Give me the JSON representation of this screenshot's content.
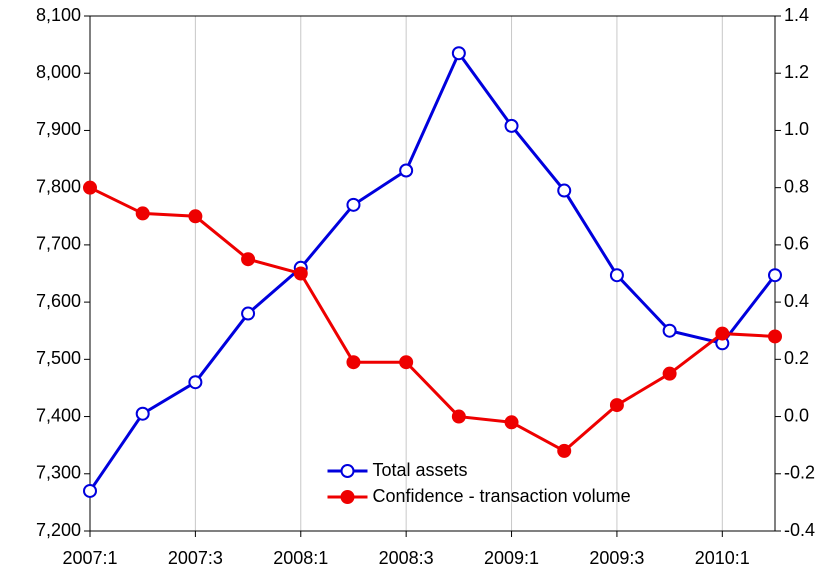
{
  "chart_data": {
    "type": "line",
    "categories": [
      "2007:1",
      null,
      "2007:3",
      null,
      "2008:1",
      null,
      "2008:3",
      null,
      "2009:1",
      null,
      "2009:3",
      null,
      "2010:1",
      null
    ],
    "series": [
      {
        "name": "Total assets",
        "color": "#0000dd",
        "marker": "open",
        "axis": "y",
        "values": [
          7270,
          7405,
          7460,
          7580,
          7660,
          7770,
          7830,
          8035,
          7908,
          7795,
          7647,
          7550,
          7528,
          7647
        ]
      },
      {
        "name": "Confidence - transaction volume",
        "color": "#ee0000",
        "marker": "filled",
        "axis": "y2",
        "values": [
          0.8,
          0.71,
          0.7,
          0.55,
          0.5,
          0.19,
          0.19,
          0.0,
          -0.02,
          -0.12,
          0.04,
          0.15,
          0.29,
          0.28
        ]
      }
    ],
    "ylim": [
      7200,
      8100
    ],
    "yticks": [
      {
        "value": 7200,
        "label": "7,200"
      },
      {
        "value": 7300,
        "label": "7,300"
      },
      {
        "value": 7400,
        "label": "7,400"
      },
      {
        "value": 7500,
        "label": "7,500"
      },
      {
        "value": 7600,
        "label": "7,600"
      },
      {
        "value": 7700,
        "label": "7,700"
      },
      {
        "value": 7800,
        "label": "7,800"
      },
      {
        "value": 7900,
        "label": "7,900"
      },
      {
        "value": 8000,
        "label": "8,000"
      },
      {
        "value": 8100,
        "label": "8,100"
      }
    ],
    "y2lim": [
      -0.4,
      1.4
    ],
    "y2ticks": [
      -0.4,
      -0.2,
      {
        "value": 0,
        "label": "0.0"
      },
      0.2,
      0.4,
      0.6,
      0.8,
      {
        "value": 1,
        "label": "1.0"
      },
      1.2,
      1.4
    ],
    "grid": true,
    "legend": "lower center"
  }
}
